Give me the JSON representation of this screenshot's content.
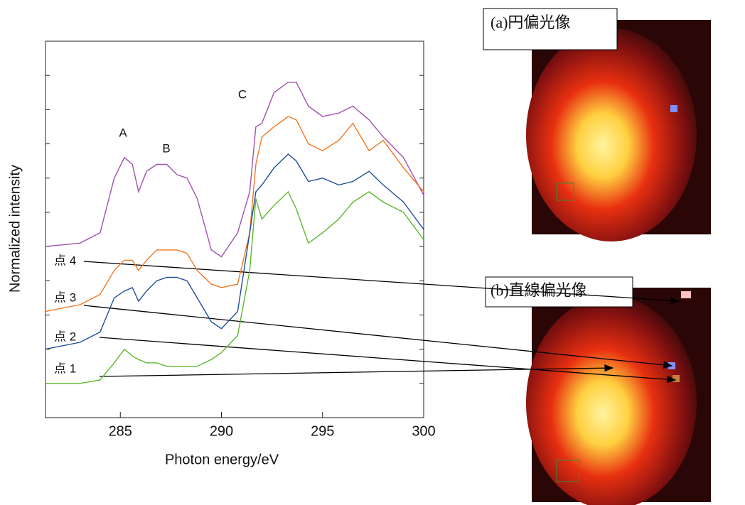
{
  "chart_data": {
    "type": "line",
    "xlabel": "Photon energy/eV",
    "ylabel": "Normalized intensity",
    "xlim": [
      281.3,
      300
    ],
    "xticks": [
      285,
      290,
      295,
      300
    ],
    "ylim": [
      0,
      11
    ],
    "yticks": [
      1,
      2,
      3,
      4,
      5,
      6,
      7,
      8,
      9,
      10
    ],
    "x": [
      281.3,
      283,
      284,
      284.7,
      285.2,
      285.6,
      285.9,
      286.3,
      286.8,
      287.3,
      287.8,
      288.3,
      288.8,
      289.5,
      290,
      290.8,
      291.4,
      291.7,
      292,
      292.6,
      293.3,
      293.7,
      294.3,
      295,
      295.8,
      296.5,
      297.3,
      298,
      299,
      300
    ],
    "series": [
      {
        "name": "点 4",
        "color": "#a050b0",
        "values": [
          5.0,
          5.1,
          5.4,
          7.0,
          7.6,
          7.4,
          6.6,
          7.2,
          7.4,
          7.4,
          7.1,
          7.0,
          6.4,
          4.9,
          4.7,
          5.4,
          6.6,
          8.5,
          8.6,
          9.5,
          9.8,
          9.8,
          9.1,
          8.8,
          8.9,
          9.1,
          8.7,
          8.2,
          7.6,
          6.5
        ]
      },
      {
        "name": "点 3",
        "color": "#f07820",
        "values": [
          3.1,
          3.3,
          3.6,
          4.3,
          4.6,
          4.6,
          4.3,
          4.6,
          4.9,
          4.9,
          4.9,
          4.8,
          4.3,
          3.9,
          3.8,
          3.9,
          5.4,
          7.4,
          8.2,
          8.5,
          8.8,
          8.7,
          8.0,
          7.8,
          8.1,
          8.6,
          7.8,
          8.1,
          7.3,
          6.6
        ]
      },
      {
        "name": "点 2",
        "color": "#1f4e9a",
        "values": [
          2.0,
          2.2,
          2.5,
          3.5,
          3.7,
          3.8,
          3.4,
          3.7,
          4.0,
          4.1,
          4.1,
          4.0,
          3.5,
          2.8,
          2.6,
          3.1,
          5.4,
          6.6,
          6.8,
          7.3,
          7.7,
          7.5,
          6.9,
          7.0,
          6.8,
          6.9,
          7.2,
          6.8,
          6.3,
          5.5
        ]
      },
      {
        "name": "点 1",
        "color": "#5cb82e",
        "values": [
          1.0,
          1.0,
          1.1,
          1.6,
          2.0,
          1.8,
          1.7,
          1.6,
          1.6,
          1.5,
          1.5,
          1.5,
          1.5,
          1.7,
          1.9,
          2.4,
          4.3,
          6.4,
          5.8,
          6.2,
          6.6,
          6.1,
          5.1,
          5.4,
          5.8,
          6.3,
          6.6,
          6.3,
          6.0,
          5.2
        ]
      }
    ],
    "annotations": [
      "A",
      "B",
      "C"
    ],
    "image_labels": [
      "(a)円偏光像",
      "(b)直線偏光像"
    ]
  }
}
